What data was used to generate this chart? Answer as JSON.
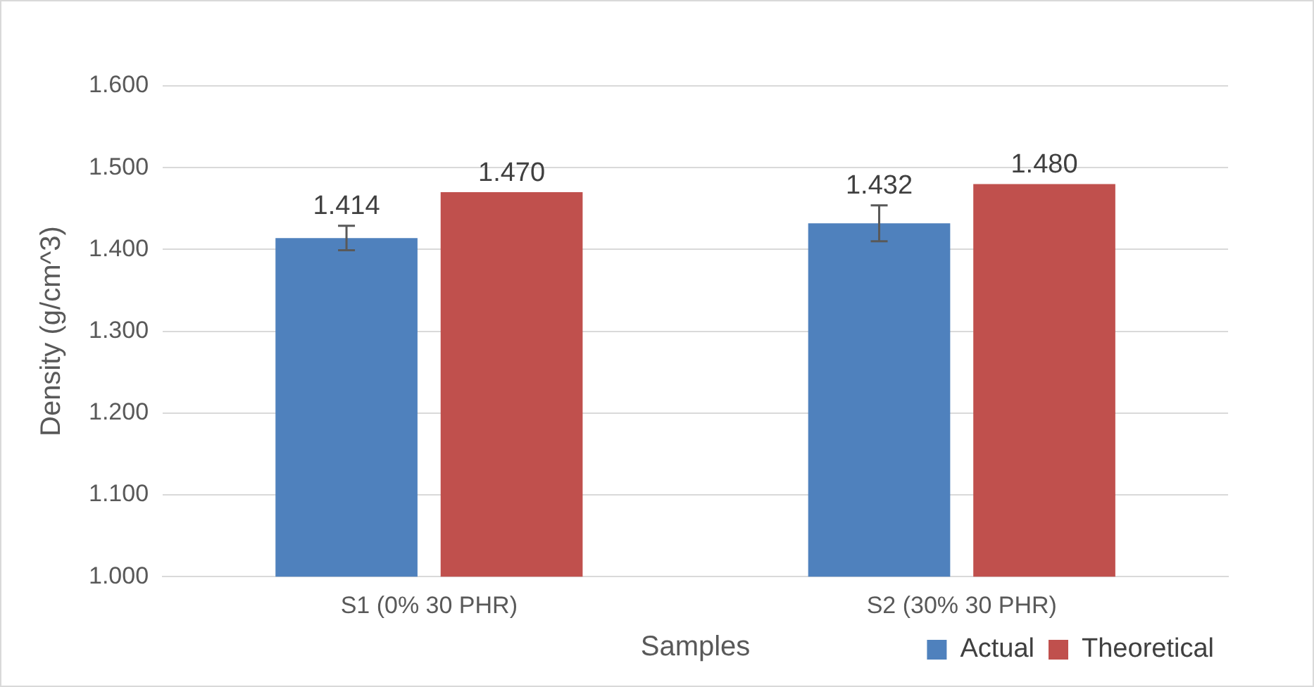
{
  "chart_data": {
    "type": "bar",
    "xlabel": "Samples",
    "ylabel": "Density (g/cm^3)",
    "categories": [
      "S1 (0% 30 PHR)",
      "S2 (30% 30 PHR)"
    ],
    "series": [
      {
        "name": "Actual",
        "color": "#4f81bd",
        "values": [
          1.414,
          1.432
        ],
        "errors": [
          0.015,
          0.022
        ],
        "value_labels": [
          "1.414",
          "1.432"
        ]
      },
      {
        "name": "Theoretical",
        "color": "#c0504d",
        "values": [
          1.47,
          1.48
        ],
        "value_labels": [
          "1.470",
          "1.480"
        ]
      }
    ],
    "ylim": [
      1.0,
      1.6
    ],
    "yticks": [
      {
        "value": 1.0,
        "label": "1.000"
      },
      {
        "value": 1.1,
        "label": "1.100"
      },
      {
        "value": 1.2,
        "label": "1.200"
      },
      {
        "value": 1.3,
        "label": "1.300"
      },
      {
        "value": 1.4,
        "label": "1.400"
      },
      {
        "value": 1.5,
        "label": "1.500"
      },
      {
        "value": 1.6,
        "label": "1.600"
      }
    ],
    "grid": "y",
    "legend": "bottom"
  }
}
